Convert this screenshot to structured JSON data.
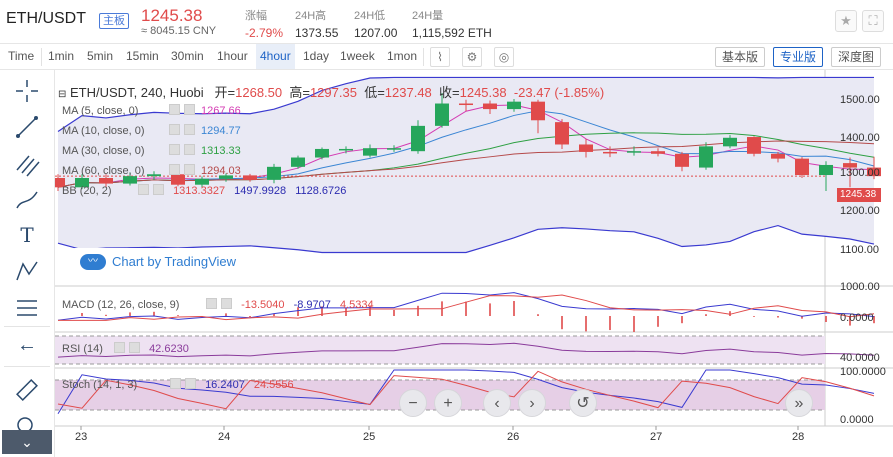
{
  "header": {
    "pair": "ETH/USDT",
    "board": "主板",
    "price": "1245.38",
    "cny": "≈ 8045.15 CNY",
    "change_label": "涨幅",
    "change_value": "-2.79%",
    "high_label": "24H高",
    "high_value": "1373.55",
    "low_label": "24H低",
    "low_value": "1207.00",
    "vol_label": "24H量",
    "vol_value": "1,115,592 ETH",
    "star_icon": "★",
    "fullscreen_icon": "⛶"
  },
  "toolbar": {
    "timeframes": [
      "Time",
      "1min",
      "5min",
      "15min",
      "30min",
      "1hour",
      "4hour",
      "1day",
      "1week",
      "1mon"
    ],
    "active_timeframe": "4hour",
    "versions": [
      "基本版",
      "专业版",
      "深度图"
    ],
    "active_version": "专业版"
  },
  "ohlc": {
    "pair_line": "ETH/USDT, 240, Huobi",
    "open_label": "开=",
    "open": "1268.50",
    "high_label": "高=",
    "high": "1297.35",
    "low_label": "低=",
    "low": "1237.48",
    "close_label": "收=",
    "close": "1245.38",
    "change": "-23.47 (-1.85%)"
  },
  "indicators": [
    {
      "label": "MA (5, close, 0)",
      "value": "1267.66",
      "color": "#d43bb3"
    },
    {
      "label": "MA (10, close, 0)",
      "value": "1294.77",
      "color": "#3b86d4"
    },
    {
      "label": "MA (30, close, 0)",
      "value": "1313.33",
      "color": "#2ea043"
    },
    {
      "label": "MA (60, close, 0)",
      "value": "1294.03",
      "color": "#b54a4a"
    }
  ],
  "bb": {
    "label": "BB (20, 2)",
    "v1": "1313.3327",
    "v2": "1497.9928",
    "v3": "1128.6726"
  },
  "macd": {
    "label": "MACD (12, 26, close, 9)",
    "v1": "-13.5040",
    "v2": "-8.9707",
    "v3": "4.5334"
  },
  "rsi": {
    "label": "RSI (14)",
    "value": "42.6230"
  },
  "stoch": {
    "label": "Stoch (14, 1, 3)",
    "v1": "16.2407",
    "v2": "24.5556"
  },
  "tradingview": "Chart by TradingView",
  "price_axis": [
    "1500.00",
    "1400.00",
    "1300.00",
    "1200.00",
    "1100.00",
    "1000.00"
  ],
  "current_price_tag": "1245.38",
  "macd_axis": "0.0000",
  "rsi_axis": "40.0000",
  "stoch_axis_top": "100.0000",
  "stoch_axis_bottom": "0.0000",
  "x_labels": [
    "23",
    "24",
    "25",
    "26",
    "27",
    "28"
  ],
  "colors": {
    "up": "#26a65b",
    "down": "#e04b4b",
    "accent": "#1e63c6",
    "bb_fill": "#e9e9f4"
  },
  "chart_data": {
    "type": "candlestick",
    "x": [
      "23",
      "24",
      "25",
      "26",
      "27",
      "28"
    ],
    "candles": [
      {
        "o": 1240,
        "c": 1215,
        "h": 1250,
        "l": 1205
      },
      {
        "o": 1215,
        "c": 1240,
        "h": 1250,
        "l": 1210
      },
      {
        "o": 1240,
        "c": 1225,
        "h": 1250,
        "l": 1215
      },
      {
        "o": 1225,
        "c": 1245,
        "h": 1255,
        "l": 1220
      },
      {
        "o": 1245,
        "c": 1250,
        "h": 1258,
        "l": 1235
      },
      {
        "o": 1250,
        "c": 1222,
        "h": 1256,
        "l": 1218
      },
      {
        "o": 1222,
        "c": 1238,
        "h": 1244,
        "l": 1216
      },
      {
        "o": 1238,
        "c": 1247,
        "h": 1252,
        "l": 1230
      },
      {
        "o": 1247,
        "c": 1235,
        "h": 1251,
        "l": 1230
      },
      {
        "o": 1235,
        "c": 1270,
        "h": 1278,
        "l": 1226
      },
      {
        "o": 1270,
        "c": 1295,
        "h": 1300,
        "l": 1265
      },
      {
        "o": 1295,
        "c": 1318,
        "h": 1322,
        "l": 1290
      },
      {
        "o": 1318,
        "c": 1318,
        "h": 1325,
        "l": 1306
      },
      {
        "o": 1300,
        "c": 1320,
        "h": 1330,
        "l": 1295
      },
      {
        "o": 1318,
        "c": 1320,
        "h": 1328,
        "l": 1310
      },
      {
        "o": 1312,
        "c": 1380,
        "h": 1395,
        "l": 1305
      },
      {
        "o": 1380,
        "c": 1440,
        "h": 1468,
        "l": 1375
      },
      {
        "o": 1440,
        "c": 1438,
        "h": 1450,
        "l": 1420
      },
      {
        "o": 1440,
        "c": 1425,
        "h": 1448,
        "l": 1412
      },
      {
        "o": 1425,
        "c": 1445,
        "h": 1452,
        "l": 1418
      },
      {
        "o": 1445,
        "c": 1395,
        "h": 1450,
        "l": 1360
      },
      {
        "o": 1390,
        "c": 1330,
        "h": 1398,
        "l": 1318
      },
      {
        "o": 1330,
        "c": 1310,
        "h": 1345,
        "l": 1295
      },
      {
        "o": 1310,
        "c": 1308,
        "h": 1325,
        "l": 1296
      },
      {
        "o": 1308,
        "c": 1312,
        "h": 1325,
        "l": 1300
      },
      {
        "o": 1312,
        "c": 1305,
        "h": 1320,
        "l": 1298
      },
      {
        "o": 1305,
        "c": 1270,
        "h": 1310,
        "l": 1258
      },
      {
        "o": 1268,
        "c": 1325,
        "h": 1336,
        "l": 1262
      },
      {
        "o": 1325,
        "c": 1348,
        "h": 1355,
        "l": 1320
      },
      {
        "o": 1350,
        "c": 1305,
        "h": 1352,
        "l": 1298
      },
      {
        "o": 1305,
        "c": 1292,
        "h": 1310,
        "l": 1282
      },
      {
        "o": 1292,
        "c": 1248,
        "h": 1296,
        "l": 1240
      },
      {
        "o": 1248,
        "c": 1275,
        "h": 1285,
        "l": 1205
      },
      {
        "o": 1280,
        "c": 1268,
        "h": 1295,
        "l": 1215
      },
      {
        "o": 1268,
        "c": 1245,
        "h": 1297,
        "l": 1237
      }
    ],
    "ylim": [
      950,
      1530
    ]
  }
}
